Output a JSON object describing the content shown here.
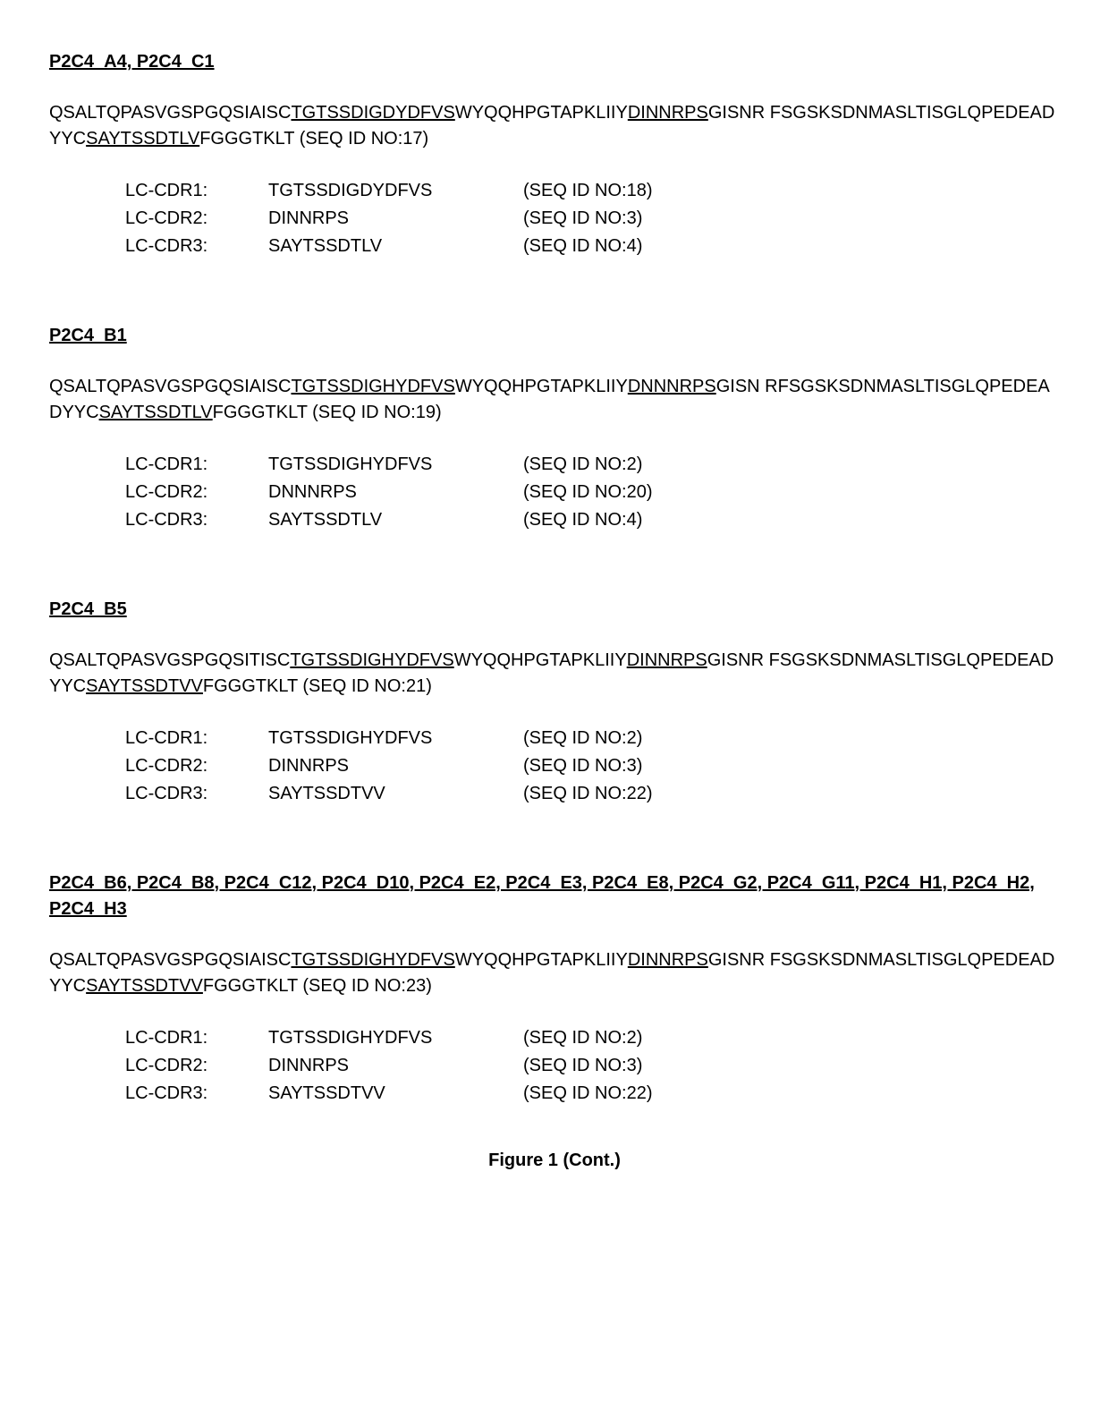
{
  "sections": [
    {
      "heading": "P2C4_A4, P2C4_C1",
      "sequence": {
        "segments": [
          {
            "text": "QSALTQPASVGSPGQSIAISC",
            "underline": false
          },
          {
            "text": "TGTSSDIGDYDFVS",
            "underline": true
          },
          {
            "text": "WYQQHPGTAPKLIIY",
            "underline": false
          },
          {
            "text": "DINNRPS",
            "underline": true
          },
          {
            "text": "GISNR FSGSKSDNMASLTISGLQPEDEADYYC",
            "underline": false
          },
          {
            "text": "SAYTSSDTLV",
            "underline": true
          },
          {
            "text": "FGGGTKLT (SEQ ID NO:17)",
            "underline": false
          }
        ]
      },
      "cdrs": [
        {
          "label": "LC-CDR1:",
          "value": "TGTSSDIGDYDFVS",
          "seqid": "(SEQ ID NO:18)"
        },
        {
          "label": "LC-CDR2:",
          "value": "DINNRPS",
          "seqid": "(SEQ ID NO:3)"
        },
        {
          "label": "LC-CDR3:",
          "value": "SAYTSSDTLV",
          "seqid": "(SEQ ID NO:4)"
        }
      ]
    },
    {
      "heading": "P2C4_B1",
      "sequence": {
        "segments": [
          {
            "text": "QSALTQPASVGSPGQSIAISC",
            "underline": false
          },
          {
            "text": "TGTSSDIGHYDFVS",
            "underline": true
          },
          {
            "text": "WYQQHPGTAPKLIIY",
            "underline": false
          },
          {
            "text": "DNNNRPS",
            "underline": true
          },
          {
            "text": "GISN RFSGSKSDNMASLTISGLQPEDEADYYC",
            "underline": false
          },
          {
            "text": "SAYTSSDTLV",
            "underline": true
          },
          {
            "text": "FGGGTKLT (SEQ ID NO:19)",
            "underline": false
          }
        ]
      },
      "cdrs": [
        {
          "label": "LC-CDR1:",
          "value": "TGTSSDIGHYDFVS",
          "seqid": "(SEQ ID NO:2)"
        },
        {
          "label": "LC-CDR2:",
          "value": "DNNNRPS",
          "seqid": "(SEQ ID NO:20)"
        },
        {
          "label": "LC-CDR3:",
          "value": "SAYTSSDTLV",
          "seqid": "(SEQ ID NO:4)"
        }
      ]
    },
    {
      "heading": "P2C4_B5",
      "sequence": {
        "segments": [
          {
            "text": "QSALTQPASVGSPGQSITISC",
            "underline": false
          },
          {
            "text": "TGTSSDIGHYDFVS",
            "underline": true
          },
          {
            "text": "WYQQHPGTAPKLIIY",
            "underline": false
          },
          {
            "text": "DINNRPS",
            "underline": true
          },
          {
            "text": "GISNR FSGSKSDNMASLTISGLQPEDEADYYC",
            "underline": false
          },
          {
            "text": "SAYTSSDTVV",
            "underline": true
          },
          {
            "text": "FGGGTKLT (SEQ ID NO:21)",
            "underline": false
          }
        ]
      },
      "cdrs": [
        {
          "label": "LC-CDR1:",
          "value": "TGTSSDIGHYDFVS",
          "seqid": "(SEQ ID NO:2)"
        },
        {
          "label": "LC-CDR2:",
          "value": "DINNRPS",
          "seqid": "(SEQ ID NO:3)"
        },
        {
          "label": "LC-CDR3:",
          "value": "SAYTSSDTVV",
          "seqid": "(SEQ ID NO:22)"
        }
      ]
    },
    {
      "heading": "P2C4_B6, P2C4_B8, P2C4_C12, P2C4_D10, P2C4_E2, P2C4_E3, P2C4_E8, P2C4_G2, P2C4_G11, P2C4_H1, P2C4_H2, P2C4_H3",
      "sequence": {
        "segments": [
          {
            "text": "QSALTQPASVGSPGQSIAISC",
            "underline": false
          },
          {
            "text": "TGTSSDIGHYDFVS",
            "underline": true
          },
          {
            "text": "WYQQHPGTAPKLIIY",
            "underline": false
          },
          {
            "text": "DINNRPS",
            "underline": true
          },
          {
            "text": "GISNR FSGSKSDNMASLTISGLQPEDEADYYC",
            "underline": false
          },
          {
            "text": "SAYTSSDTVV",
            "underline": true
          },
          {
            "text": "FGGGTKLT (SEQ ID NO:23)",
            "underline": false
          }
        ]
      },
      "cdrs": [
        {
          "label": "LC-CDR1:",
          "value": "TGTSSDIGHYDFVS",
          "seqid": "(SEQ ID NO:2)"
        },
        {
          "label": "LC-CDR2:",
          "value": "DINNRPS",
          "seqid": "(SEQ ID NO:3)"
        },
        {
          "label": "LC-CDR3:",
          "value": "SAYTSSDTVV",
          "seqid": "(SEQ ID NO:22)"
        }
      ]
    }
  ],
  "figure_caption": "Figure 1 (Cont.)"
}
